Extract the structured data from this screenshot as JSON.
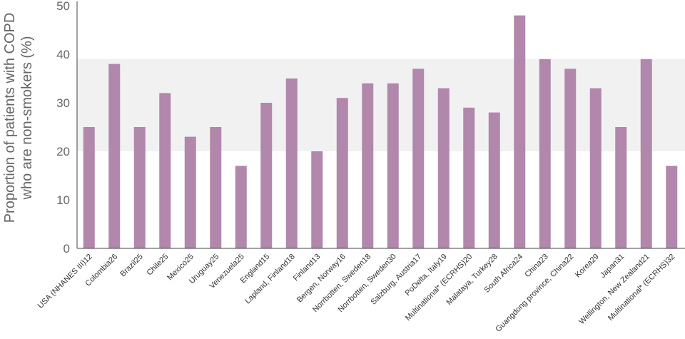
{
  "chart_data": {
    "type": "bar",
    "ylabel_lines": [
      "Proportion of patients with COPD",
      "who are non-smokers (%)"
    ],
    "ylim": [
      0,
      50
    ],
    "yticks": [
      0,
      10,
      20,
      30,
      40,
      50
    ],
    "band_range": [
      20,
      39
    ],
    "categories": [
      "USA (NHANES III)12",
      "Colombia26",
      "Brazil25",
      "Chile25",
      "Mexico25",
      "Uruguay25",
      "Venezuela25",
      "England15",
      "Lapland, Finland18",
      "Finland13",
      "Bergen, Norway16",
      "Norrbotten, Sweden18",
      "Norrbotten, Sweden30",
      "Salzburg, Austria17",
      "PoDelta, Italy19",
      "Multinational* (ECRHS)20",
      "Malataya, Turkey28",
      "South Africa24",
      "China23",
      "Guangdong province, China22",
      "Korea29",
      "Japan31",
      "Wellington, New Zealand21",
      "Multinational* (ECRHS)32"
    ],
    "values": [
      25,
      38,
      25,
      32,
      23,
      25,
      17,
      30,
      35,
      20,
      31,
      34,
      34,
      37,
      33,
      29,
      28,
      48,
      39,
      37,
      33,
      25,
      39,
      17
    ],
    "colors": {
      "bar": "#b287ac",
      "band": "#f1f1f1",
      "axis": "#444444"
    }
  }
}
